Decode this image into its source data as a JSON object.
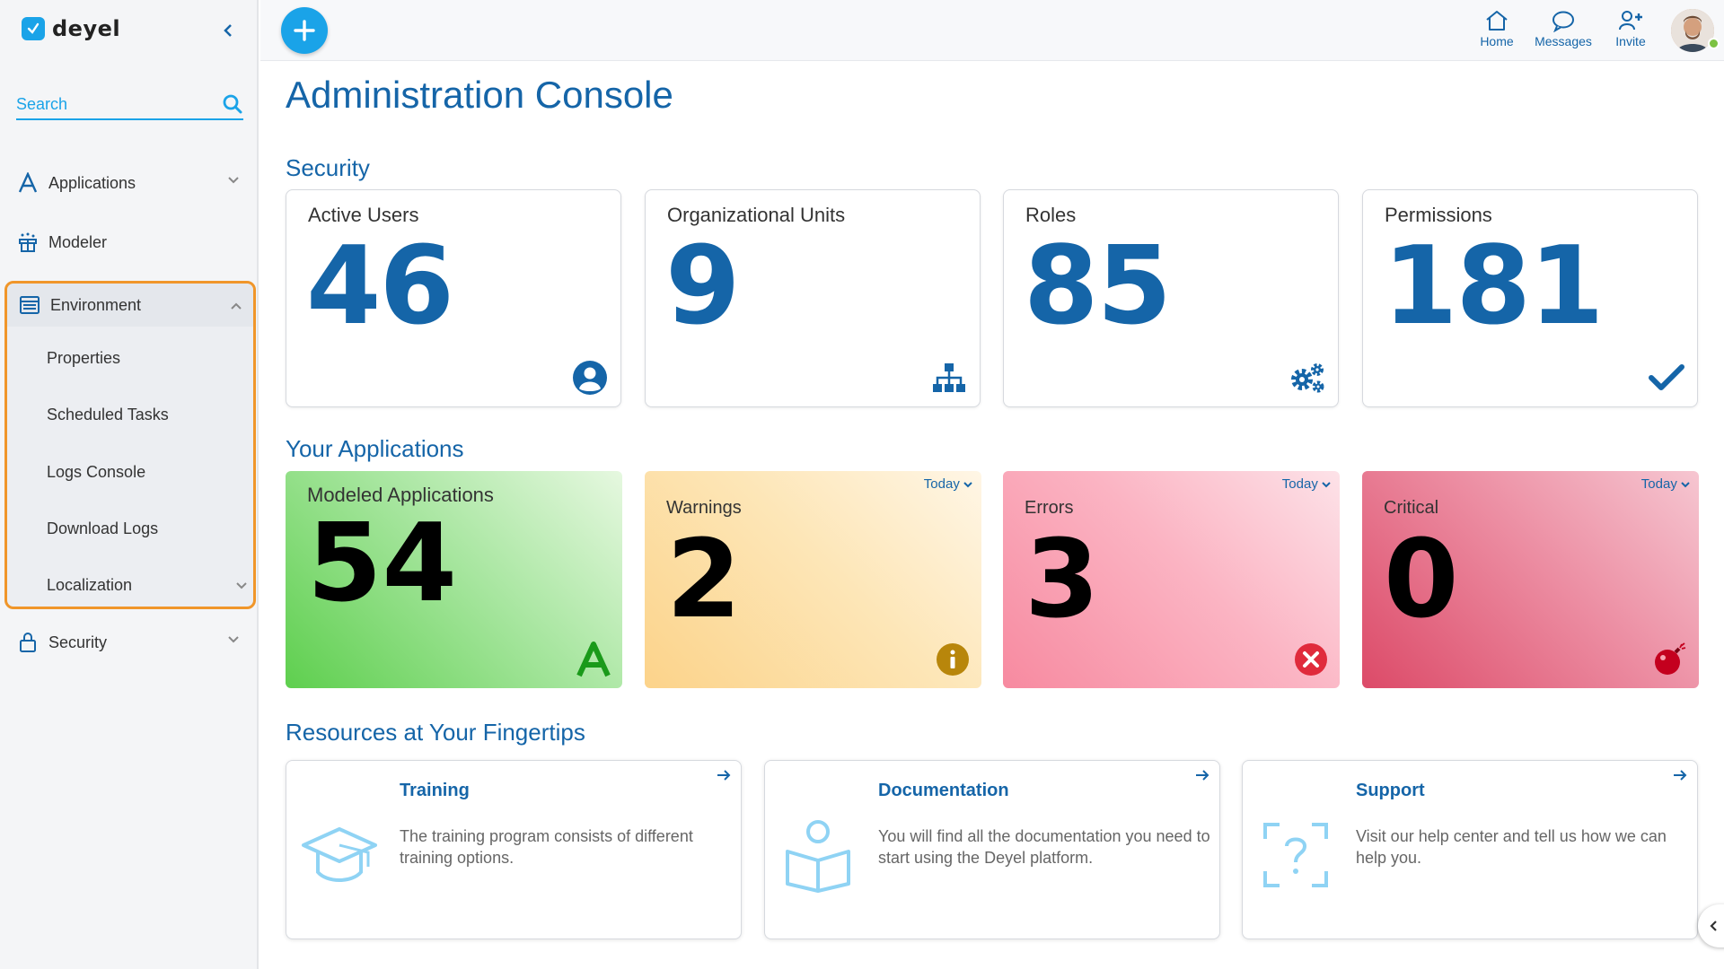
{
  "app": {
    "brand": "deyel"
  },
  "colors": {
    "primary": "#1565a8",
    "accent": "#1aa3e8",
    "highlight": "#f0962a"
  },
  "sidebar": {
    "search_placeholder": "Search",
    "items": [
      {
        "label": "Applications",
        "icon": "applications-icon"
      },
      {
        "label": "Modeler",
        "icon": "modeler-icon"
      },
      {
        "label": "Environment",
        "icon": "environment-icon"
      },
      {
        "label": "Security",
        "icon": "lock-icon"
      }
    ],
    "environment_subitems": [
      {
        "label": "Properties"
      },
      {
        "label": "Scheduled Tasks"
      },
      {
        "label": "Logs Console"
      },
      {
        "label": "Download Logs"
      },
      {
        "label": "Localization"
      }
    ]
  },
  "topbar": {
    "actions": [
      {
        "label": "Home",
        "icon": "home-icon"
      },
      {
        "label": "Messages",
        "icon": "chat-icon"
      },
      {
        "label": "Invite",
        "icon": "add-user-icon"
      }
    ]
  },
  "main": {
    "title": "Administration Console",
    "security": {
      "title": "Security",
      "cards": [
        {
          "label": "Active Users",
          "value": "46",
          "icon": "user-circle-icon"
        },
        {
          "label": "Organizational Units",
          "value": "9",
          "icon": "org-chart-icon"
        },
        {
          "label": "Roles",
          "value": "85",
          "icon": "gears-icon"
        },
        {
          "label": "Permissions",
          "value": "181",
          "icon": "check-icon"
        }
      ]
    },
    "applications": {
      "title": "Your Applications",
      "cards": [
        {
          "label": "Modeled Applications",
          "value": "54",
          "icon": "app-a-icon"
        },
        {
          "label": "Warnings",
          "value": "2",
          "filter": "Today",
          "icon": "info-icon"
        },
        {
          "label": "Errors",
          "value": "3",
          "filter": "Today",
          "icon": "error-x-icon"
        },
        {
          "label": "Critical",
          "value": "0",
          "filter": "Today",
          "icon": "bomb-icon"
        }
      ]
    },
    "resources": {
      "title": "Resources at Your Fingertips",
      "cards": [
        {
          "title": "Training",
          "description": "The training program consists of different training options.",
          "icon": "graduation-cap-icon"
        },
        {
          "title": "Documentation",
          "description": "You will find all the documentation you need to start using the Deyel platform.",
          "icon": "book-reader-icon"
        },
        {
          "title": "Support",
          "description": "Visit our help center and tell us how we can help you.",
          "icon": "help-question-icon"
        }
      ]
    }
  }
}
